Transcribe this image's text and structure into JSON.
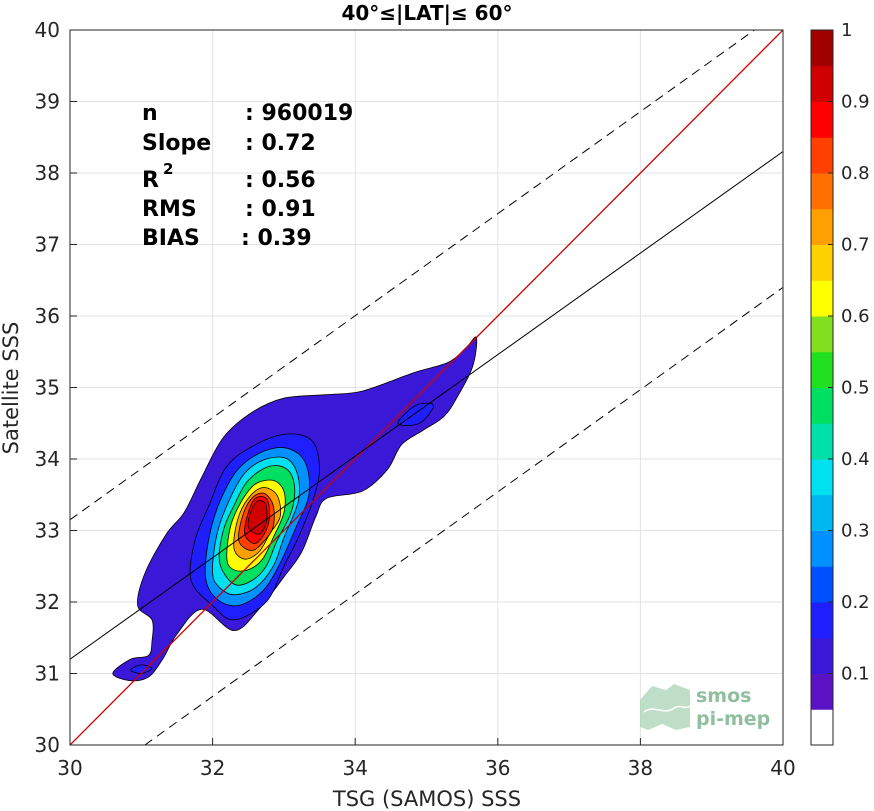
{
  "chart_data": {
    "type": "heatmap",
    "title": "40°≤|LAT|≤ 60°",
    "xlabel": "TSG (SAMOS) SSS",
    "ylabel": "Satellite SSS",
    "xlim": [
      30,
      40
    ],
    "ylim": [
      30,
      40
    ],
    "xticks": [
      "30",
      "32",
      "34",
      "36",
      "38",
      "40"
    ],
    "yticks": [
      "30",
      "31",
      "32",
      "33",
      "34",
      "35",
      "36",
      "37",
      "38",
      "39",
      "40"
    ],
    "grid": true,
    "stats": [
      {
        "label": "n",
        "value": ": 960019"
      },
      {
        "label": "Slope",
        "value": ": 0.72"
      },
      {
        "label": "R",
        "sup": "2",
        "value": ": 0.56"
      },
      {
        "label": "RMS",
        "value": ": 0.91"
      },
      {
        "label": "BIAS",
        "value": ": 0.39"
      }
    ],
    "lines": [
      {
        "name": "one-to-one",
        "color": "#cc0000",
        "style": "solid",
        "points": [
          [
            30,
            30
          ],
          [
            40,
            40
          ]
        ]
      },
      {
        "name": "regression",
        "color": "#000000",
        "style": "solid",
        "points": [
          [
            30,
            31.2
          ],
          [
            40,
            38.3
          ]
        ]
      },
      {
        "name": "upper-bound",
        "color": "#000000",
        "style": "dashed",
        "points": [
          [
            30,
            33.15
          ],
          [
            39.6,
            40
          ]
        ]
      },
      {
        "name": "lower-bound",
        "color": "#000000",
        "style": "dashed",
        "points": [
          [
            31.05,
            30
          ],
          [
            40,
            36.4
          ]
        ]
      }
    ],
    "density_peak": {
      "x": 32.65,
      "y": 33.3
    },
    "colorbar": {
      "ticks": [
        "0.1",
        "0.2",
        "0.3",
        "0.4",
        "0.5",
        "0.6",
        "0.7",
        "0.8",
        "0.9",
        "1"
      ],
      "range": [
        0,
        1
      ],
      "levels": [
        {
          "from": 0.0,
          "to": 0.05,
          "color": "#ffffff"
        },
        {
          "from": 0.05,
          "to": 0.1,
          "color": "#5a12c4"
        },
        {
          "from": 0.1,
          "to": 0.15,
          "color": "#3a18d8"
        },
        {
          "from": 0.15,
          "to": 0.2,
          "color": "#1e1eff"
        },
        {
          "from": 0.2,
          "to": 0.25,
          "color": "#0050ff"
        },
        {
          "from": 0.25,
          "to": 0.3,
          "color": "#0090ff"
        },
        {
          "from": 0.3,
          "to": 0.35,
          "color": "#00b8f0"
        },
        {
          "from": 0.35,
          "to": 0.4,
          "color": "#00e0f0"
        },
        {
          "from": 0.4,
          "to": 0.45,
          "color": "#00e0a8"
        },
        {
          "from": 0.45,
          "to": 0.5,
          "color": "#00e060"
        },
        {
          "from": 0.5,
          "to": 0.55,
          "color": "#20e020"
        },
        {
          "from": 0.55,
          "to": 0.6,
          "color": "#80e020"
        },
        {
          "from": 0.6,
          "to": 0.65,
          "color": "#ffff00"
        },
        {
          "from": 0.65,
          "to": 0.7,
          "color": "#ffd000"
        },
        {
          "from": 0.7,
          "to": 0.75,
          "color": "#ffa000"
        },
        {
          "from": 0.75,
          "to": 0.8,
          "color": "#ff7000"
        },
        {
          "from": 0.8,
          "to": 0.85,
          "color": "#ff4000"
        },
        {
          "from": 0.85,
          "to": 0.9,
          "color": "#ff0000"
        },
        {
          "from": 0.9,
          "to": 0.95,
          "color": "#d00000"
        },
        {
          "from": 0.95,
          "to": 1.0,
          "color": "#a00000"
        }
      ]
    },
    "contours": [
      {
        "level": 0.1,
        "color": "#3a18d8",
        "points": [
          [
            30.6,
            31.0
          ],
          [
            30.85,
            31.2
          ],
          [
            31.1,
            31.25
          ],
          [
            31.15,
            31.45
          ],
          [
            31.15,
            31.75
          ],
          [
            30.95,
            31.95
          ],
          [
            31.05,
            32.4
          ],
          [
            31.35,
            32.95
          ],
          [
            31.6,
            33.25
          ],
          [
            31.85,
            33.75
          ],
          [
            32.15,
            34.3
          ],
          [
            32.55,
            34.65
          ],
          [
            33.0,
            34.85
          ],
          [
            33.6,
            34.9
          ],
          [
            34.1,
            34.95
          ],
          [
            34.8,
            35.2
          ],
          [
            35.3,
            35.35
          ],
          [
            35.55,
            35.55
          ],
          [
            35.7,
            35.7
          ],
          [
            35.65,
            35.3
          ],
          [
            35.45,
            34.9
          ],
          [
            35.25,
            34.6
          ],
          [
            34.95,
            34.4
          ],
          [
            34.65,
            34.2
          ],
          [
            34.45,
            33.85
          ],
          [
            34.1,
            33.55
          ],
          [
            33.6,
            33.45
          ],
          [
            33.45,
            33.2
          ],
          [
            33.25,
            32.7
          ],
          [
            33.0,
            32.35
          ],
          [
            32.65,
            31.9
          ],
          [
            32.3,
            31.6
          ],
          [
            31.85,
            31.9
          ],
          [
            31.5,
            31.55
          ],
          [
            31.3,
            31.2
          ],
          [
            31.1,
            30.95
          ],
          [
            30.85,
            30.9
          ]
        ]
      },
      {
        "level": 0.2,
        "color": "#1e1eff",
        "points": [
          [
            31.7,
            32.3
          ],
          [
            31.75,
            32.85
          ],
          [
            31.95,
            33.35
          ],
          [
            32.2,
            33.9
          ],
          [
            32.6,
            34.2
          ],
          [
            33.05,
            34.35
          ],
          [
            33.4,
            34.25
          ],
          [
            33.5,
            33.85
          ],
          [
            33.4,
            33.4
          ],
          [
            33.2,
            32.9
          ],
          [
            33.0,
            32.5
          ],
          [
            32.75,
            32.0
          ],
          [
            32.3,
            31.75
          ],
          [
            32.0,
            31.95
          ]
        ]
      },
      {
        "level": 0.3,
        "color": "#0090ff",
        "points": [
          [
            31.9,
            32.35
          ],
          [
            31.95,
            32.9
          ],
          [
            32.1,
            33.4
          ],
          [
            32.35,
            33.85
          ],
          [
            32.7,
            34.1
          ],
          [
            33.05,
            34.15
          ],
          [
            33.3,
            33.95
          ],
          [
            33.35,
            33.5
          ],
          [
            33.15,
            33.0
          ],
          [
            32.95,
            32.55
          ],
          [
            32.7,
            32.15
          ],
          [
            32.35,
            31.95
          ],
          [
            32.05,
            32.05
          ]
        ]
      },
      {
        "level": 0.4,
        "color": "#00e0f0",
        "points": [
          [
            32.0,
            32.4
          ],
          [
            32.05,
            32.9
          ],
          [
            32.2,
            33.35
          ],
          [
            32.45,
            33.8
          ],
          [
            32.75,
            34.0
          ],
          [
            33.05,
            34.0
          ],
          [
            33.2,
            33.75
          ],
          [
            33.2,
            33.4
          ],
          [
            33.0,
            32.9
          ],
          [
            32.85,
            32.5
          ],
          [
            32.6,
            32.2
          ],
          [
            32.3,
            32.1
          ],
          [
            32.1,
            32.2
          ]
        ]
      },
      {
        "level": 0.5,
        "color": "#00e060",
        "points": [
          [
            32.1,
            32.55
          ],
          [
            32.15,
            33.0
          ],
          [
            32.3,
            33.35
          ],
          [
            32.5,
            33.7
          ],
          [
            32.8,
            33.9
          ],
          [
            33.05,
            33.85
          ],
          [
            33.15,
            33.6
          ],
          [
            33.1,
            33.25
          ],
          [
            32.9,
            32.85
          ],
          [
            32.75,
            32.5
          ],
          [
            32.55,
            32.3
          ],
          [
            32.3,
            32.25
          ]
        ]
      },
      {
        "level": 0.6,
        "color": "#ffff00",
        "points": [
          [
            32.2,
            32.6
          ],
          [
            32.25,
            33.05
          ],
          [
            32.4,
            33.4
          ],
          [
            32.6,
            33.65
          ],
          [
            32.85,
            33.7
          ],
          [
            33.0,
            33.55
          ],
          [
            33.0,
            33.25
          ],
          [
            32.85,
            32.9
          ],
          [
            32.7,
            32.6
          ],
          [
            32.5,
            32.45
          ],
          [
            32.3,
            32.45
          ]
        ]
      },
      {
        "level": 0.7,
        "color": "#ffa000",
        "points": [
          [
            32.3,
            32.75
          ],
          [
            32.35,
            33.15
          ],
          [
            32.5,
            33.45
          ],
          [
            32.7,
            33.6
          ],
          [
            32.9,
            33.5
          ],
          [
            32.95,
            33.2
          ],
          [
            32.8,
            32.95
          ],
          [
            32.65,
            32.7
          ],
          [
            32.45,
            32.6
          ]
        ]
      },
      {
        "level": 0.8,
        "color": "#ff4000",
        "points": [
          [
            32.37,
            32.85
          ],
          [
            32.42,
            33.2
          ],
          [
            32.55,
            33.45
          ],
          [
            32.72,
            33.52
          ],
          [
            32.85,
            33.35
          ],
          [
            32.85,
            33.05
          ],
          [
            32.72,
            32.85
          ],
          [
            32.55,
            32.72
          ]
        ]
      },
      {
        "level": 0.9,
        "color": "#ff0000",
        "points": [
          [
            32.45,
            32.95
          ],
          [
            32.5,
            33.25
          ],
          [
            32.6,
            33.45
          ],
          [
            32.75,
            33.45
          ],
          [
            32.8,
            33.25
          ],
          [
            32.75,
            33.0
          ],
          [
            32.6,
            32.82
          ]
        ]
      },
      {
        "level": 1.0,
        "color": "#d00000",
        "points": [
          [
            32.5,
            33.05
          ],
          [
            32.55,
            33.3
          ],
          [
            32.65,
            33.42
          ],
          [
            32.75,
            33.35
          ],
          [
            32.75,
            33.1
          ],
          [
            32.65,
            32.95
          ]
        ]
      }
    ],
    "islands": [
      {
        "level": 0.2,
        "color": "#1e1eff",
        "points": [
          [
            30.85,
            31.05
          ],
          [
            31.0,
            31.12
          ],
          [
            31.15,
            31.07
          ],
          [
            31.0,
            31.0
          ]
        ]
      },
      {
        "level": 0.2,
        "color": "#1e1eff",
        "points": [
          [
            34.6,
            34.5
          ],
          [
            34.85,
            34.75
          ],
          [
            35.1,
            34.75
          ],
          [
            34.9,
            34.5
          ]
        ]
      }
    ],
    "logo": {
      "line1": "smos",
      "line2": "pi-mep"
    }
  }
}
